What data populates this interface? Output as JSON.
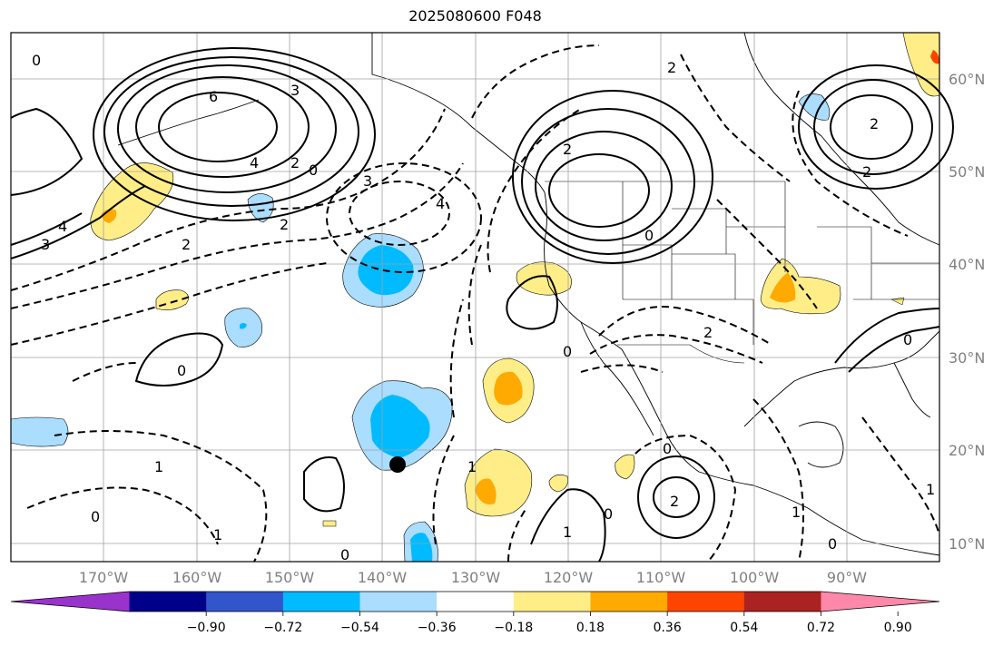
{
  "title": "2025080600 F048",
  "lat_labels": [
    "60°N",
    "50°N",
    "40°N",
    "30°N",
    "20°N",
    "10°N"
  ],
  "lon_labels": [
    "170°W",
    "160°W",
    "150°W",
    "140°W",
    "130°W",
    "120°W",
    "110°W",
    "100°W",
    "90°W"
  ],
  "colorbar": {
    "colors": [
      "#9933cc",
      "#000088",
      "#3355cc",
      "#00bbff",
      "#aaddff",
      "#ffffff",
      "#ffee88",
      "#ffaa00",
      "#ff4400",
      "#aa2222",
      "#ff88aa"
    ],
    "tick_labels": [
      "−0.90",
      "−0.72",
      "−0.54",
      "−0.36",
      "−0.18",
      "0.18",
      "0.36",
      "0.54",
      "0.72",
      "0.90"
    ]
  },
  "contour_labels": [
    "0",
    "4",
    "3",
    "6",
    "3",
    "4",
    "2",
    "0",
    "3",
    "4",
    "2",
    "2",
    "2",
    "0",
    "2",
    "2",
    "0",
    "2",
    "0",
    "1",
    "0",
    "2",
    "0",
    "1",
    "1",
    "0",
    "0",
    "1",
    "2",
    "0",
    "1",
    "0",
    "1"
  ],
  "markers": [
    {
      "type": "dot",
      "color": "#000000"
    }
  ],
  "colors": {
    "land_line": "#000000",
    "grid": "#a0a0a0",
    "shade_light_blue": "#aaddff",
    "shade_blue": "#00bbff",
    "shade_yellow": "#ffee88",
    "shade_orange": "#ffaa00"
  }
}
